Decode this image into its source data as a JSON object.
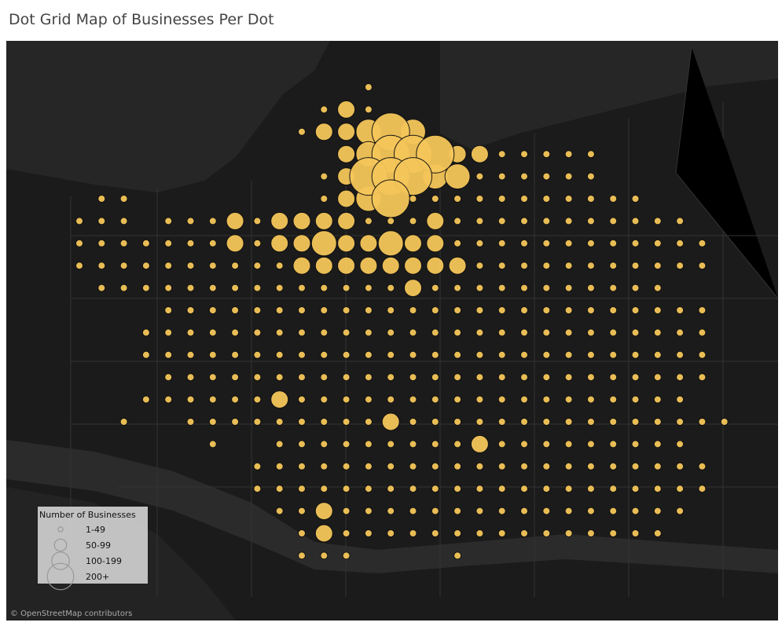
{
  "title": "Dot Grid Map of Businesses Per Dot",
  "dot_color": "#f5c65a",
  "legend": {
    "title": "Number of Businesses",
    "items": [
      "1-49",
      "50-99",
      "100-199",
      "200+"
    ]
  },
  "attribution": "© OpenStreetMap contributors",
  "dots": [
    ".............0...............",
    "...........010...............",
    "..........011232.............",
    "............123331100000.....",
    "...........0133322000000.....",
    ".00........012300000000000...",
    "000.000101111000100000000000..",
    "00000001011211211000000000000",
    "00000000001111111100000000000",
    ".00000000000000100000000000.",
    "....0000000000000000000000000",
    "...00000000000000000000000000",
    "...00000000000000000000000000",
    "....0000000000000000000000000",
    "...0000001000000000000000000",
    "..0..0000000001000000000000000",
    "......0..0000000001000000000..",
    "........000000000000000000000",
    "........000000000000000000000",
    ".........0010000000000000000",
    "..........01000000000000000",
    "..........000....0..........."
  ]
}
